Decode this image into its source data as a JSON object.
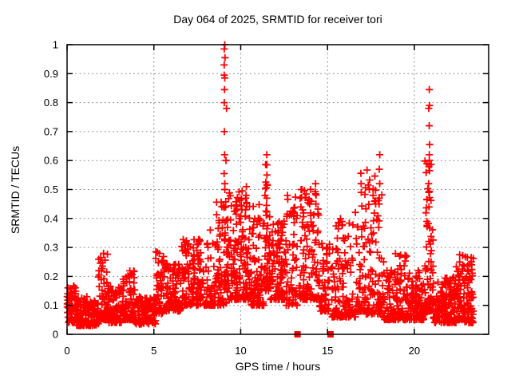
{
  "chart_data": {
    "type": "scatter",
    "title": "Day 064 of 2025, SRMTID for receiver tori",
    "xlabel": "GPS time / hours",
    "ylabel": "SRMTID / TECUs",
    "xlim": [
      0,
      24.28
    ],
    "ylim": [
      0,
      1
    ],
    "xticks": [
      0,
      5,
      10,
      15,
      20
    ],
    "xtick_labels": [
      "0",
      "5",
      "10",
      "15",
      "20"
    ],
    "yticks": [
      0,
      0.1,
      0.2,
      0.3,
      0.4,
      0.5,
      0.6,
      0.7,
      0.8,
      0.9,
      1
    ],
    "ytick_labels": [
      "0",
      "0.1",
      "0.2",
      "0.3",
      "0.4",
      "0.5",
      "0.6",
      "0.7",
      "0.8",
      "0.9",
      "1"
    ],
    "grid": true,
    "legend": "none",
    "marker": {
      "shape": "plus",
      "color": "#ff0000",
      "size": 9,
      "stroke_width": 1.8
    },
    "seed": 20250064,
    "point_cloud_model": {
      "description_bands": "dense scatter approximated by x-range bands: n points, y between ylo..yhi biased low by exponent shape",
      "bands": [
        {
          "x0": 0.0,
          "x1": 0.55,
          "n": 70,
          "ylo": 0.04,
          "yhi": 0.17,
          "shape": 1.4
        },
        {
          "x0": 0.55,
          "x1": 1.8,
          "n": 150,
          "ylo": 0.03,
          "yhi": 0.13,
          "shape": 1.7
        },
        {
          "x0": 1.8,
          "x1": 2.35,
          "n": 65,
          "ylo": 0.05,
          "yhi": 0.28,
          "shape": 2.0
        },
        {
          "x0": 2.35,
          "x1": 3.2,
          "n": 95,
          "ylo": 0.04,
          "yhi": 0.17,
          "shape": 2.0
        },
        {
          "x0": 3.2,
          "x1": 3.9,
          "n": 75,
          "ylo": 0.05,
          "yhi": 0.22,
          "shape": 2.1
        },
        {
          "x0": 3.9,
          "x1": 5.1,
          "n": 115,
          "ylo": 0.035,
          "yhi": 0.13,
          "shape": 1.6
        },
        {
          "x0": 5.1,
          "x1": 5.65,
          "n": 55,
          "ylo": 0.07,
          "yhi": 0.3,
          "shape": 2.0
        },
        {
          "x0": 5.65,
          "x1": 6.6,
          "n": 95,
          "ylo": 0.08,
          "yhi": 0.25,
          "shape": 1.8
        },
        {
          "x0": 6.6,
          "x1": 8.6,
          "n": 190,
          "ylo": 0.1,
          "yhi": 0.33,
          "shape": 1.9
        },
        {
          "x0": 8.6,
          "x1": 9.3,
          "n": 85,
          "ylo": 0.1,
          "yhi": 0.46,
          "shape": 1.4
        },
        {
          "x0": 9.3,
          "x1": 10.6,
          "n": 160,
          "ylo": 0.12,
          "yhi": 0.5,
          "shape": 1.8
        },
        {
          "x0": 10.6,
          "x1": 11.4,
          "n": 95,
          "ylo": 0.1,
          "yhi": 0.45,
          "shape": 2.0
        },
        {
          "x0": 11.4,
          "x1": 11.7,
          "n": 45,
          "ylo": 0.15,
          "yhi": 0.6,
          "shape": 1.7
        },
        {
          "x0": 11.7,
          "x1": 12.6,
          "n": 105,
          "ylo": 0.12,
          "yhi": 0.4,
          "shape": 1.9
        },
        {
          "x0": 12.6,
          "x1": 13.25,
          "n": 65,
          "ylo": 0.1,
          "yhi": 0.48,
          "shape": 2.1
        },
        {
          "x0": 13.35,
          "x1": 14.5,
          "n": 115,
          "ylo": 0.12,
          "yhi": 0.52,
          "shape": 2.1
        },
        {
          "x0": 14.5,
          "x1": 15.12,
          "n": 60,
          "ylo": 0.08,
          "yhi": 0.33,
          "shape": 1.9
        },
        {
          "x0": 15.2,
          "x1": 16.6,
          "n": 135,
          "ylo": 0.06,
          "yhi": 0.4,
          "shape": 2.3
        },
        {
          "x0": 16.6,
          "x1": 17.2,
          "n": 60,
          "ylo": 0.08,
          "yhi": 0.52,
          "shape": 2.2
        },
        {
          "x0": 17.2,
          "x1": 18.2,
          "n": 95,
          "ylo": 0.07,
          "yhi": 0.58,
          "shape": 2.5
        },
        {
          "x0": 18.2,
          "x1": 19.6,
          "n": 135,
          "ylo": 0.05,
          "yhi": 0.28,
          "shape": 2.1
        },
        {
          "x0": 19.6,
          "x1": 20.6,
          "n": 105,
          "ylo": 0.05,
          "yhi": 0.22,
          "shape": 1.9
        },
        {
          "x0": 20.6,
          "x1": 21.1,
          "n": 75,
          "ylo": 0.08,
          "yhi": 0.6,
          "shape": 2.5
        },
        {
          "x0": 21.1,
          "x1": 22.4,
          "n": 145,
          "ylo": 0.04,
          "yhi": 0.2,
          "shape": 1.9
        },
        {
          "x0": 22.4,
          "x1": 22.9,
          "n": 65,
          "ylo": 0.05,
          "yhi": 0.28,
          "shape": 1.9
        },
        {
          "x0": 22.9,
          "x1": 23.4,
          "n": 65,
          "ylo": 0.04,
          "yhi": 0.27,
          "shape": 2.1
        }
      ],
      "spike_columns": [
        {
          "x": 9.07,
          "ys": [
            1.0,
            0.985,
            0.955,
            0.93,
            0.895,
            0.885,
            0.845,
            0.8,
            0.7,
            0.62,
            0.555,
            0.52,
            0.5
          ]
        },
        {
          "x": 9.16,
          "ys": [
            0.78,
            0.6,
            0.44
          ]
        },
        {
          "x": 8.25,
          "ys": [
            0.36
          ]
        },
        {
          "x": 10.32,
          "ys": [
            0.51,
            0.48,
            0.455
          ]
        },
        {
          "x": 11.52,
          "ys": [
            0.62,
            0.585,
            0.55,
            0.515,
            0.47
          ]
        },
        {
          "x": 13.45,
          "ys": [
            0.5,
            0.47,
            0.44
          ]
        },
        {
          "x": 14.33,
          "ys": [
            0.52,
            0.485,
            0.45
          ]
        },
        {
          "x": 16.92,
          "ys": [
            0.556,
            0.52,
            0.49
          ]
        },
        {
          "x": 18.0,
          "ys": [
            0.62,
            0.57,
            0.52,
            0.47
          ]
        },
        {
          "x": 20.85,
          "ys": [
            0.845,
            0.79,
            0.78,
            0.72,
            0.655,
            0.62,
            0.6,
            0.585,
            0.565,
            0.52,
            0.49,
            0.44
          ]
        },
        {
          "x": 22.62,
          "ys": [
            0.275,
            0.25
          ]
        },
        {
          "x": 23.28,
          "ys": [
            0.265,
            0.24
          ]
        }
      ]
    },
    "baseline_squares": {
      "shape": "filled-square",
      "color": "#ff0000",
      "size": 8,
      "points": [
        {
          "x": 13.27,
          "y": 0
        },
        {
          "x": 15.17,
          "y": 0
        }
      ]
    }
  },
  "colors": {
    "background": "#ffffff",
    "marker": "#ff0000",
    "border": "#000000",
    "grid": "#8a8a8a",
    "text": "#000000"
  }
}
